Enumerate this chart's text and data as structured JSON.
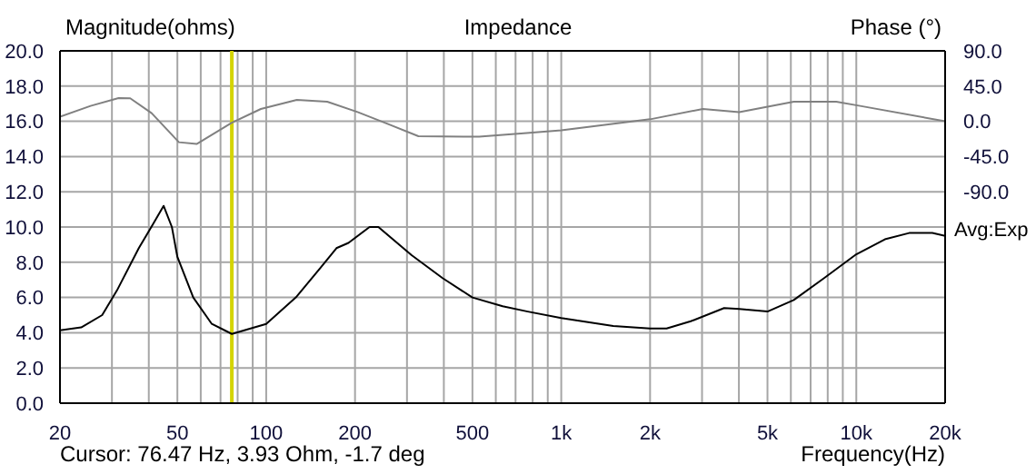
{
  "chart_data": {
    "type": "line",
    "title": "Impedance",
    "ylabel": "Magnitude(ohms)",
    "y2label": "Phase (°)",
    "xlabel": "Frequency(Hz)",
    "annotations": [
      "Cursor: 76.47 Hz, 3.93 Ohm, -1.7 deg",
      "Avg:Exp"
    ],
    "log": "x",
    "grid": true,
    "marker": "none",
    "xlim": [
      20,
      20000
    ],
    "xticks": [
      20,
      {
        "value": 30,
        "label": null
      },
      {
        "value": 40,
        "label": null
      },
      50,
      {
        "value": 60,
        "label": null
      },
      {
        "value": 70,
        "label": null
      },
      {
        "value": 80,
        "label": null
      },
      {
        "value": 90,
        "label": null
      },
      100,
      200,
      {
        "value": 300,
        "label": null
      },
      {
        "value": 400,
        "label": null
      },
      500,
      {
        "value": 600,
        "label": null
      },
      {
        "value": 700,
        "label": null
      },
      {
        "value": 800,
        "label": null
      },
      {
        "value": 900,
        "label": null
      },
      {
        "value": 1000,
        "label": "1k"
      },
      {
        "value": 2000,
        "label": "2k"
      },
      {
        "value": 3000,
        "label": null
      },
      {
        "value": 4000,
        "label": null
      },
      {
        "value": 5000,
        "label": "5k"
      },
      {
        "value": 6000,
        "label": null
      },
      {
        "value": 7000,
        "label": null
      },
      {
        "value": 8000,
        "label": null
      },
      {
        "value": 9000,
        "label": null
      },
      {
        "value": 10000,
        "label": "10k"
      },
      {
        "value": 20000,
        "label": "20k"
      }
    ],
    "ylim": [
      0,
      20
    ],
    "yticks": [
      {
        "value": 0,
        "label": "0.0"
      },
      {
        "value": 2,
        "label": "2.0"
      },
      {
        "value": 4,
        "label": "4.0"
      },
      {
        "value": 6,
        "label": "6.0"
      },
      {
        "value": 8,
        "label": "8.0"
      },
      {
        "value": 10,
        "label": "10.0"
      },
      {
        "value": 12,
        "label": "12.0"
      },
      {
        "value": 14,
        "label": "14.0"
      },
      {
        "value": 16,
        "label": "16.0"
      },
      {
        "value": 18,
        "label": "18.0"
      },
      {
        "value": 20,
        "label": "20.0"
      }
    ],
    "y2lim": [
      -360,
      90
    ],
    "y2ticks": [
      {
        "value": 90,
        "label": "90.0"
      },
      {
        "value": 45,
        "label": "45.0"
      },
      {
        "value": 0,
        "label": "0.0"
      },
      {
        "value": -45,
        "label": "-45.0"
      },
      {
        "value": -90,
        "label": "-90.0"
      }
    ],
    "ref_lines": [
      {
        "axis": "x",
        "value": 76.47,
        "color": "#d4d400"
      }
    ],
    "series": [
      {
        "color": "#808080",
        "axis": "y2",
        "x": [
          20,
          25.4,
          31.6,
          34.6,
          40.9,
          50.6,
          58.1,
          76.47,
          95.9,
          127,
          161,
          204,
          259,
          328,
          527,
          764,
          1000,
          2000,
          3020,
          4010,
          6140,
          8550,
          10300,
          20000
        ],
        "values": [
          5.8,
          19.7,
          29.7,
          29.4,
          10.4,
          -26.7,
          -29,
          -1.7,
          15.8,
          27.4,
          25,
          11.8,
          -3.5,
          -19,
          -19.7,
          -15,
          -11.4,
          2.6,
          15.8,
          11.8,
          25,
          25,
          19.7,
          0
        ]
      },
      {
        "color": "#000000",
        "x": [
          20,
          23.6,
          27.8,
          31.2,
          37,
          40.8,
          44.9,
          47.9,
          50,
          56.6,
          65.4,
          76.47,
          100,
          126,
          153,
          173,
          190,
          224,
          240,
          311,
          396,
          500,
          633,
          770,
          1000,
          1500,
          2000,
          2275,
          2748,
          3565,
          4010,
          5000,
          6140,
          7780,
          10000,
          12500,
          15100,
          18100,
          20000
        ],
        "values": [
          4.14,
          4.3,
          5,
          6.4,
          8.8,
          10,
          11.2,
          10,
          8.3,
          6,
          4.5,
          3.93,
          4.5,
          6,
          7.7,
          8.8,
          9.1,
          10,
          10,
          8.4,
          7.1,
          6,
          5.5,
          5.2,
          4.83,
          4.38,
          4.24,
          4.24,
          4.65,
          5.4,
          5.35,
          5.2,
          5.86,
          7.1,
          8.45,
          9.3,
          9.66,
          9.66,
          9.5
        ]
      }
    ]
  }
}
